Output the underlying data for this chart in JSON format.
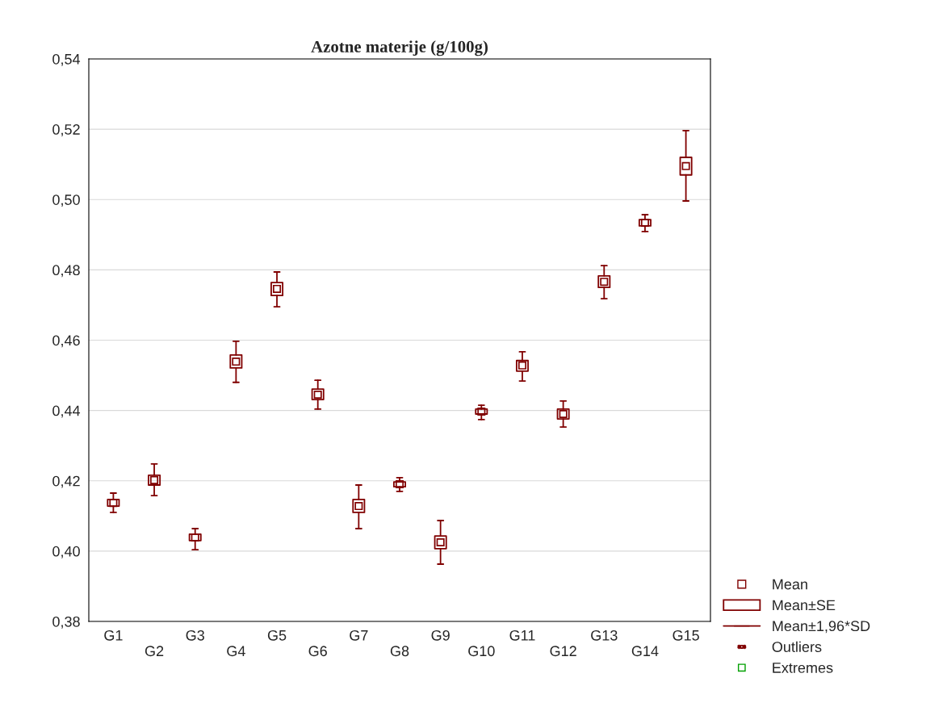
{
  "chart_data": {
    "type": "box",
    "title": "Azotne materije (g/100g)",
    "categories": [
      "G1",
      "G2",
      "G3",
      "G4",
      "G5",
      "G6",
      "G7",
      "G8",
      "G9",
      "G10",
      "G11",
      "G12",
      "G13",
      "G14",
      "G15"
    ],
    "series": [
      {
        "name": "Mean",
        "color": "#800000",
        "boxes": [
          {
            "low": 0.411,
            "q1": 0.4128,
            "median": 0.4137,
            "q3": 0.4147,
            "high": 0.4165
          },
          {
            "low": 0.4158,
            "q1": 0.4188,
            "median": 0.4202,
            "q3": 0.4216,
            "high": 0.4248
          },
          {
            "low": 0.4004,
            "q1": 0.403,
            "median": 0.4039,
            "q3": 0.4048,
            "high": 0.4064
          },
          {
            "low": 0.448,
            "q1": 0.4521,
            "median": 0.4539,
            "q3": 0.4558,
            "high": 0.4597
          },
          {
            "low": 0.4695,
            "q1": 0.4727,
            "median": 0.4746,
            "q3": 0.4764,
            "high": 0.4794
          },
          {
            "low": 0.4404,
            "q1": 0.4431,
            "median": 0.4445,
            "q3": 0.4461,
            "high": 0.4486
          },
          {
            "low": 0.4064,
            "q1": 0.411,
            "median": 0.4128,
            "q3": 0.4147,
            "high": 0.4188
          },
          {
            "low": 0.417,
            "q1": 0.4183,
            "median": 0.419,
            "q3": 0.4197,
            "high": 0.4209
          },
          {
            "low": 0.3963,
            "q1": 0.4007,
            "median": 0.4025,
            "q3": 0.4043,
            "high": 0.4087
          },
          {
            "low": 0.4374,
            "q1": 0.439,
            "median": 0.4397,
            "q3": 0.4404,
            "high": 0.4415
          },
          {
            "low": 0.4484,
            "q1": 0.4512,
            "median": 0.4528,
            "q3": 0.4542,
            "high": 0.4567
          },
          {
            "low": 0.4353,
            "q1": 0.4376,
            "median": 0.439,
            "q3": 0.4404,
            "high": 0.4427
          },
          {
            "low": 0.4718,
            "q1": 0.475,
            "median": 0.4766,
            "q3": 0.4783,
            "high": 0.4812
          },
          {
            "low": 0.4909,
            "q1": 0.4925,
            "median": 0.4934,
            "q3": 0.4943,
            "high": 0.4957
          },
          {
            "low": 0.4996,
            "q1": 0.507,
            "median": 0.5095,
            "q3": 0.512,
            "high": 0.5196
          }
        ]
      }
    ],
    "annotations": [
      "Mean±SE",
      "Mean±1,96*SD",
      "Outliers",
      "Extremes"
    ],
    "ylim": [
      0.38,
      0.54
    ],
    "yticks": [
      {
        "value": 0.38,
        "label": "0,38"
      },
      {
        "value": 0.4,
        "label": "0,40"
      },
      {
        "value": 0.42,
        "label": "0,42"
      },
      {
        "value": 0.44,
        "label": "0,44"
      },
      {
        "value": 0.46,
        "label": "0,46"
      },
      {
        "value": 0.48,
        "label": "0,48"
      },
      {
        "value": 0.5,
        "label": "0,50"
      },
      {
        "value": 0.52,
        "label": "0,52"
      },
      {
        "value": 0.54,
        "label": "0,54"
      }
    ],
    "grid": "y",
    "legend": "bottom right",
    "marker": "square"
  }
}
